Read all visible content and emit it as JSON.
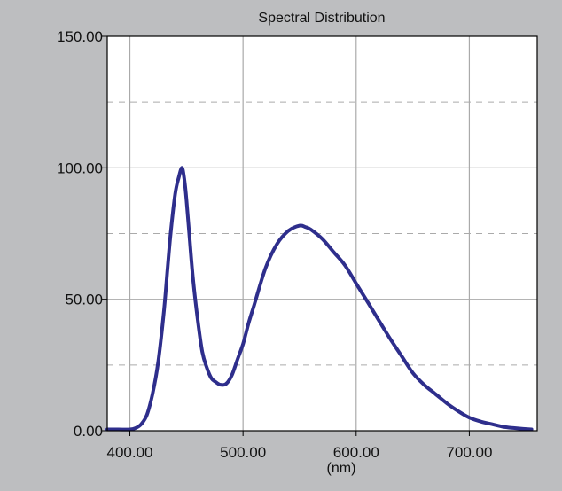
{
  "chart_data": {
    "type": "line",
    "title": "Spectral Distribution",
    "xlabel": "(nm)",
    "ylabel": "",
    "xlim": [
      380,
      760
    ],
    "ylim": [
      0,
      150
    ],
    "x_ticks": [
      400,
      500,
      600,
      700
    ],
    "x_tick_labels": [
      "400.00",
      "500.00",
      "600.00",
      "700.00"
    ],
    "y_ticks": [
      0,
      50,
      100,
      150
    ],
    "y_tick_labels": [
      "0.00",
      "50.00",
      "100.00",
      "150.00"
    ],
    "y_minor_dashed": [
      25,
      75,
      125
    ],
    "grid": true,
    "legend": "none",
    "colors": {
      "background": "#bdbec0",
      "plot": "#ffffff",
      "line": "#2e2e8c",
      "grid": "#aaaaaa",
      "axis": "#000000"
    },
    "series": [
      {
        "x": [
          380,
          390,
          400,
          405,
          410,
          415,
          420,
          425,
          430,
          433,
          436,
          440,
          443,
          446,
          448,
          450,
          453,
          456,
          460,
          464,
          468,
          472,
          476,
          480,
          485,
          490,
          495,
          500,
          505,
          510,
          520,
          530,
          540,
          550,
          555,
          560,
          570,
          580,
          590,
          600,
          610,
          620,
          630,
          640,
          650,
          660,
          670,
          680,
          690,
          700,
          710,
          720,
          730,
          740,
          755
        ],
        "y": [
          0.5,
          0.5,
          0.5,
          1.0,
          2.5,
          6,
          14,
          26,
          45,
          60,
          75,
          90,
          96,
          100,
          96,
          88,
          72,
          57,
          42,
          30,
          24,
          20,
          18.5,
          17.5,
          17.8,
          21,
          27,
          33,
          41,
          48,
          62,
          71,
          76,
          78,
          77.5,
          76.5,
          73,
          68,
          63,
          56,
          49,
          42,
          35,
          28.5,
          22,
          17.5,
          14,
          10.5,
          7.5,
          5,
          3.5,
          2.5,
          1.5,
          1.0,
          0.5
        ]
      }
    ]
  }
}
